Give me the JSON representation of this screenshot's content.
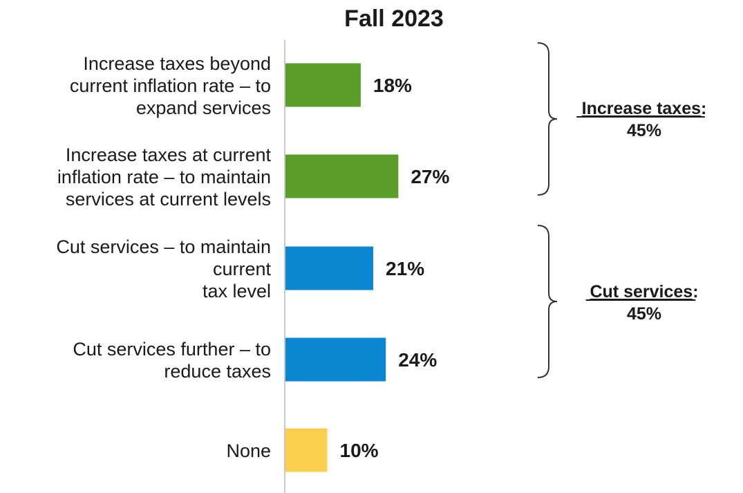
{
  "chart_data": {
    "type": "bar",
    "orientation": "horizontal",
    "title": "Fall 2023",
    "categories": [
      [
        "Increase taxes beyond",
        "current inflation rate – to",
        "expand services"
      ],
      [
        "Increase taxes at current",
        "inflation rate – to maintain",
        "services at current levels"
      ],
      [
        "Cut services – to maintain",
        "current",
        "tax level"
      ],
      [
        "Cut services further – to",
        "reduce taxes"
      ],
      [
        "None"
      ]
    ],
    "values": [
      18,
      27,
      21,
      24,
      10
    ],
    "value_labels": [
      "18%",
      "27%",
      "21%",
      "24%",
      "10%"
    ],
    "bar_colors": [
      "#5c9e2b",
      "#5c9e2b",
      "#0a87d0",
      "#0a87d0",
      "#fbcf4e"
    ],
    "xlim": [
      0,
      100
    ],
    "grid": false,
    "legend": null,
    "groups": [
      {
        "label": "Increase taxes",
        "value_label": "45%",
        "members": [
          0,
          1
        ]
      },
      {
        "label": "Cut services",
        "value_label": "45%",
        "members": [
          2,
          3
        ]
      }
    ]
  }
}
